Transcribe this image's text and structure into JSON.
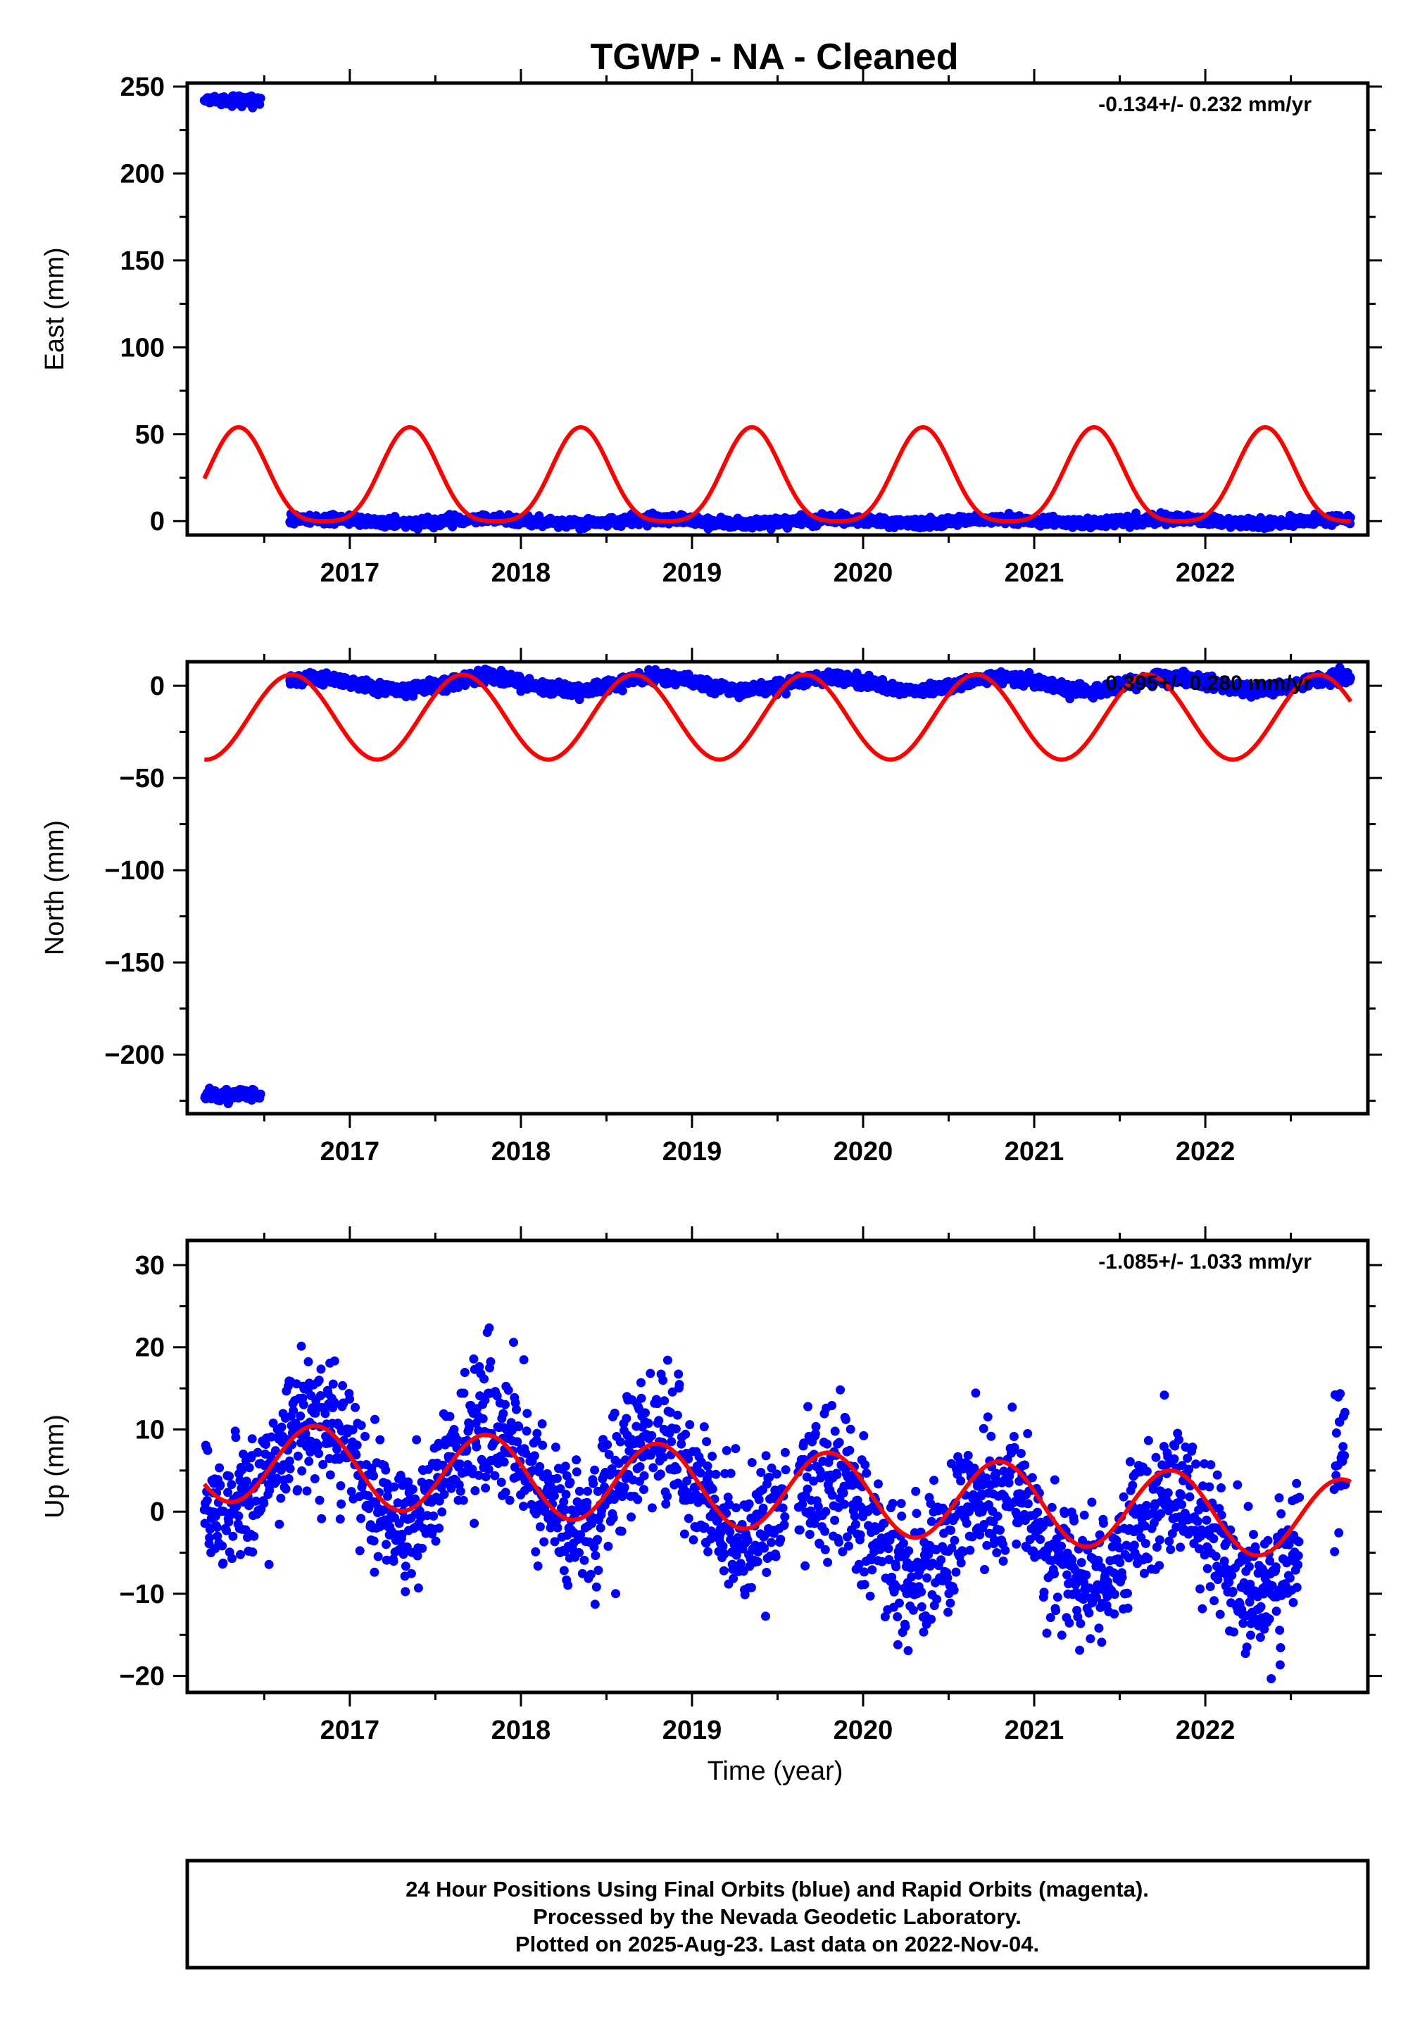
{
  "title": "TGWP  - NA - Cleaned",
  "x_axis_label": "Time (year)",
  "colors": {
    "points": "#0000ff",
    "model": "#ff0000",
    "frame": "#000000"
  },
  "chart_data": [
    {
      "type": "scatter",
      "panel": "east",
      "ylabel": "East (mm)",
      "rate_text": "-0.134+/- 0.232 mm/yr",
      "xlim": [
        2016.05,
        2022.95
      ],
      "ylim": [
        -8,
        252
      ],
      "xticks": [
        2017,
        2018,
        2019,
        2020,
        2021,
        2022
      ],
      "yticks": [
        0,
        50,
        100,
        150,
        200,
        250
      ],
      "grid": false,
      "series": [
        {
          "kind": "points",
          "segments": [
            {
              "start": 2016.15,
              "end": 2016.48,
              "level": 242,
              "amp": 0,
              "noise": 1.2
            },
            {
              "start": 2016.65,
              "end": 2022.85,
              "level": 0,
              "amp": 1.2,
              "noise": 1.3
            }
          ]
        },
        {
          "kind": "model",
          "start": 2016.15,
          "end": 2022.85,
          "mean": 21,
          "amp": 27,
          "peak": 2016.35,
          "harmonic2": 6
        }
      ]
    },
    {
      "type": "scatter",
      "panel": "north",
      "ylabel": "North (mm)",
      "rate_text": "0.395+/- 0.280 mm/yr",
      "xlim": [
        2016.05,
        2022.95
      ],
      "ylim": [
        -232,
        13
      ],
      "xticks": [
        2017,
        2018,
        2019,
        2020,
        2021,
        2022
      ],
      "yticks": [
        0,
        -50,
        -100,
        -150,
        -200
      ],
      "ytick_labels": [
        "0",
        "−50",
        "−100",
        "−150",
        "−200"
      ],
      "grid": false,
      "series": [
        {
          "kind": "points",
          "segments": [
            {
              "start": 2016.15,
              "end": 2016.48,
              "level": -222,
              "amp": 0,
              "noise": 1.5
            },
            {
              "start": 2016.65,
              "end": 2022.85,
              "level": 1,
              "amp": 3.5,
              "noise": 1.6
            }
          ]
        },
        {
          "kind": "model",
          "start": 2016.15,
          "end": 2022.85,
          "mean": -17,
          "amp": 23,
          "peak": 2016.66,
          "harmonic2": 0
        }
      ]
    },
    {
      "type": "scatter",
      "panel": "up",
      "ylabel": "Up (mm)",
      "rate_text": "-1.085+/- 1.033 mm/yr",
      "xlim": [
        2016.05,
        2022.95
      ],
      "ylim": [
        -22,
        33
      ],
      "xticks": [
        2017,
        2018,
        2019,
        2020,
        2021,
        2022
      ],
      "yticks": [
        30,
        20,
        10,
        0,
        -10,
        -20
      ],
      "ytick_labels": [
        "30",
        "20",
        "10",
        "0",
        "−10",
        "−20"
      ],
      "grid": false,
      "series": [
        {
          "kind": "points",
          "segments": [
            {
              "start": 2016.15,
              "end": 2019.55,
              "level": 2.6,
              "amp": 6.0,
              "noise": 4.0,
              "trend": -1.085
            },
            {
              "start": 2019.62,
              "end": 2022.55,
              "level": -1.1,
              "amp": 5.5,
              "noise": 4.2,
              "trend": -1.085
            },
            {
              "start": 2022.75,
              "end": 2022.82,
              "level": 8,
              "amp": 0,
              "noise": 4.5
            }
          ]
        },
        {
          "kind": "model",
          "start": 2016.15,
          "end": 2022.85,
          "mean": 2.6,
          "amp": 4.9,
          "peak": 2016.8,
          "harmonic2": 0,
          "trend": -1.085
        }
      ]
    }
  ],
  "footer": {
    "line1": "24 Hour Positions Using Final Orbits (blue) and Rapid Orbits (magenta).",
    "line2": "Processed by the Nevada Geodetic Laboratory.",
    "line3": "Plotted on 2025-Aug-23. Last data on 2022-Nov-04."
  }
}
